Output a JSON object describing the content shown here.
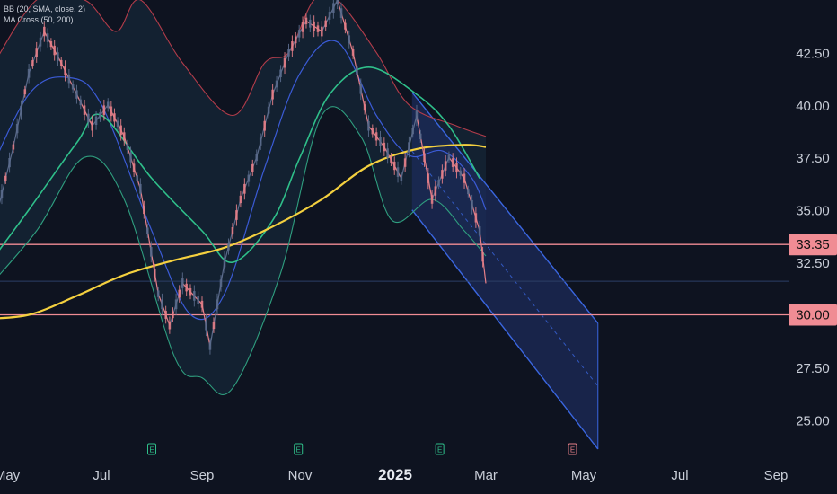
{
  "legend": {
    "bb": "BB (20, SMA, close, 2)",
    "ma_cross": "MA Cross (50, 200)"
  },
  "colors": {
    "background": "#0e1320",
    "axis_text": "#c9ced8",
    "up_candle": "#5b6b8c",
    "down_candle": "#e57f88",
    "bb_upper": "#b23c4a",
    "bb_basis": "#3b5bd6",
    "bb_lower": "#2f9e7f",
    "bb_fill": "#142535",
    "ma50": "#2fbf8a",
    "ma200": "#f4d03f",
    "hline": "#f08c94",
    "label_bg": "#f08c94",
    "channel_border": "#3a66e0",
    "channel_fill": "#1c2c5c",
    "last_price_line": "#2c3f66"
  },
  "chart_data": {
    "type": "line",
    "title": "",
    "xlabel": "",
    "ylabel": "",
    "x_tick_labels": [
      "May",
      "Jul",
      "Sep",
      "Nov",
      "2025",
      "Mar",
      "May",
      "Jul",
      "Sep"
    ],
    "x_tick_dates": [
      "2024-05-01",
      "2024-07-01",
      "2024-09-01",
      "2024-11-01",
      "2025-01-01",
      "2025-03-01",
      "2025-05-01",
      "2025-07-01",
      "2025-09-01"
    ],
    "y_tick_labels": [
      "25.00",
      "27.50",
      "32.50",
      "35.00",
      "37.50",
      "40.00",
      "42.50"
    ],
    "y_ticks": [
      25.0,
      27.5,
      32.5,
      35.0,
      37.5,
      40.0,
      42.5
    ],
    "ylim": [
      23.6,
      45.0
    ],
    "grid": false,
    "horizontal_levels": [
      {
        "label": "33.35",
        "value": 33.35
      },
      {
        "label": "30.00",
        "value": 30.0
      }
    ],
    "event_markers": [
      {
        "label": "E",
        "date": "2024-08-01"
      },
      {
        "label": "E",
        "date": "2024-10-31"
      },
      {
        "label": "E",
        "date": "2025-01-30"
      },
      {
        "label": "E",
        "date": "2025-04-24"
      }
    ],
    "series": [
      {
        "name": "MA Cross 200",
        "x": [
          "2024-04-15",
          "2024-05-15",
          "2024-06-15",
          "2024-07-15",
          "2024-08-15",
          "2024-09-15",
          "2024-10-15",
          "2024-11-15",
          "2024-12-15",
          "2025-01-15",
          "2025-02-15",
          "2025-03-01"
        ],
        "values": [
          29.8,
          30.0,
          30.9,
          31.9,
          32.6,
          33.2,
          34.2,
          35.5,
          37.1,
          37.9,
          38.1,
          38.0
        ]
      },
      {
        "name": "MA Cross 50",
        "x": [
          "2024-04-15",
          "2024-05-15",
          "2024-06-15",
          "2024-07-01",
          "2024-08-01",
          "2024-09-01",
          "2024-09-20",
          "2024-10-15",
          "2024-11-01",
          "2024-11-20",
          "2024-12-15",
          "2025-01-15",
          "2025-02-05",
          "2025-02-25"
        ],
        "values": [
          32.0,
          35.0,
          38.2,
          39.5,
          36.5,
          34.0,
          32.5,
          34.5,
          37.5,
          40.5,
          41.8,
          40.5,
          39.0,
          36.5
        ]
      },
      {
        "name": "BB Basis",
        "x": [
          "2024-04-15",
          "2024-05-15",
          "2024-06-10",
          "2024-07-01",
          "2024-08-01",
          "2024-08-25",
          "2024-09-15",
          "2024-10-10",
          "2024-11-01",
          "2024-11-25",
          "2024-12-20",
          "2025-01-10",
          "2025-02-01",
          "2025-02-20",
          "2025-03-01"
        ],
        "values": [
          36.0,
          40.5,
          41.3,
          40.0,
          34.0,
          30.0,
          31.0,
          37.0,
          41.5,
          43.0,
          39.5,
          37.6,
          37.8,
          36.5,
          35.0
        ]
      },
      {
        "name": "BB Upper",
        "x": [
          "2024-04-15",
          "2024-05-20",
          "2024-06-20",
          "2024-07-10",
          "2024-07-25",
          "2024-08-20",
          "2024-09-20",
          "2024-10-10",
          "2024-10-25",
          "2024-11-10",
          "2024-11-25",
          "2024-12-20",
          "2025-01-10",
          "2025-02-10",
          "2025-03-01"
        ],
        "values": [
          41.0,
          45.0,
          45.0,
          43.5,
          45.0,
          42.0,
          39.5,
          42.0,
          42.5,
          45.0,
          45.0,
          42.5,
          40.0,
          39.0,
          38.5
        ]
      },
      {
        "name": "BB Lower",
        "x": [
          "2024-04-15",
          "2024-05-20",
          "2024-06-20",
          "2024-07-15",
          "2024-08-15",
          "2024-09-01",
          "2024-09-20",
          "2024-10-20",
          "2024-11-15",
          "2024-12-10",
          "2024-12-30",
          "2025-01-25",
          "2025-02-15",
          "2025-03-01"
        ],
        "values": [
          31.0,
          34.0,
          37.5,
          35.5,
          28.0,
          27.0,
          26.5,
          32.0,
          39.5,
          38.5,
          34.5,
          35.5,
          34.0,
          32.8
        ]
      },
      {
        "name": "Close",
        "x": [
          "2024-04-15",
          "2024-04-25",
          "2024-05-05",
          "2024-05-15",
          "2024-05-25",
          "2024-06-05",
          "2024-06-15",
          "2024-06-25",
          "2024-07-05",
          "2024-07-15",
          "2024-07-25",
          "2024-08-05",
          "2024-08-12",
          "2024-08-20",
          "2024-09-01",
          "2024-09-06",
          "2024-09-15",
          "2024-09-25",
          "2024-10-05",
          "2024-10-15",
          "2024-10-25",
          "2024-11-05",
          "2024-11-15",
          "2024-11-25",
          "2024-12-05",
          "2024-12-15",
          "2024-12-25",
          "2025-01-05",
          "2025-01-15",
          "2025-01-25",
          "2025-02-05",
          "2025-02-15",
          "2025-02-25",
          "2025-03-01"
        ],
        "values": [
          36.5,
          35.0,
          38.0,
          41.5,
          43.5,
          42.0,
          40.5,
          39.0,
          40.0,
          38.5,
          36.0,
          31.0,
          29.5,
          31.5,
          30.5,
          28.5,
          32.5,
          35.5,
          37.5,
          40.5,
          42.5,
          44.0,
          43.5,
          45.0,
          42.5,
          39.0,
          38.0,
          36.5,
          39.5,
          35.5,
          37.5,
          36.5,
          34.0,
          31.5
        ]
      }
    ],
    "regression_channel": {
      "start_date": "2025-01-12",
      "end_date": "2025-05-10",
      "upper_start": 40.6,
      "upper_end": 29.6,
      "mid_start": 37.8,
      "mid_end": 26.6,
      "lower_start": 35.0,
      "lower_end": 23.6
    },
    "last_price": 31.6
  }
}
